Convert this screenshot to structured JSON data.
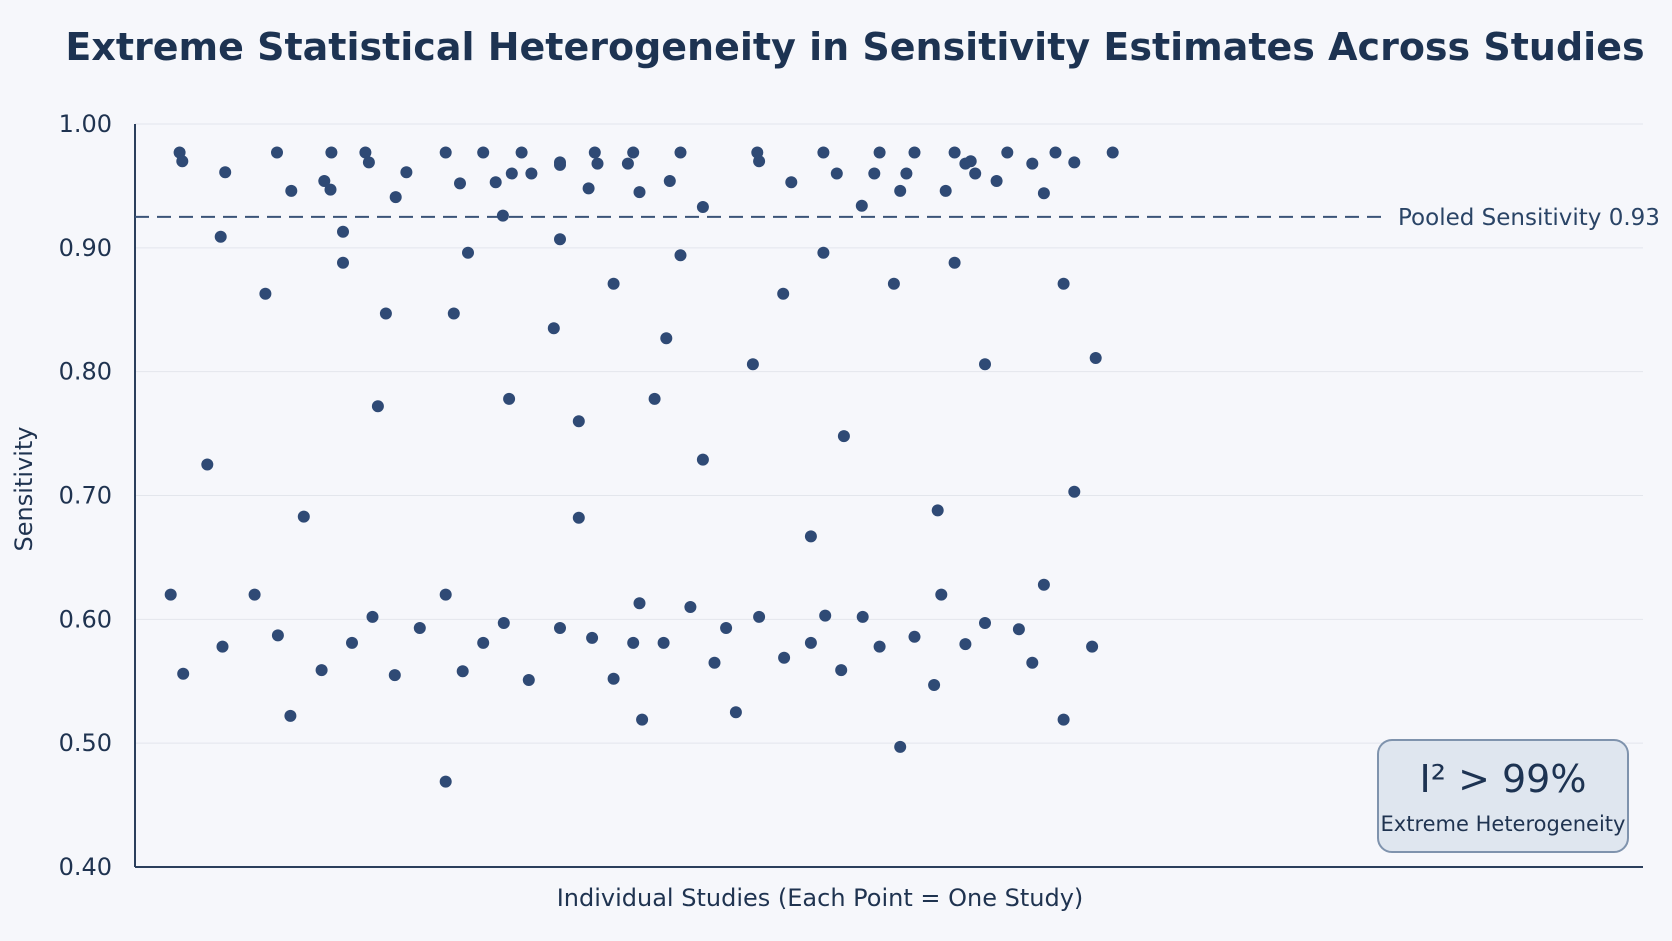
{
  "chart_data": {
    "type": "scatter",
    "title": "Extreme Statistical Heterogeneity in Sensitivity Estimates Across Studies",
    "xlabel": "Individual Studies (Each Point = One Study)",
    "ylabel": "Sensitivity",
    "ylim": [
      0.4,
      1.0
    ],
    "xlim": [
      0,
      140
    ],
    "yticks": [
      "1.00",
      "0.90",
      "0.80",
      "0.70",
      "0.60",
      "0.50",
      "0.40"
    ],
    "grid": "horizontal",
    "reference_line": {
      "value": 0.925,
      "label": "Pooled Sensitivity 0.93"
    },
    "annotation": {
      "main": "I² > 99%",
      "sub": "Extreme Heterogeneity"
    },
    "colors": {
      "point": "#2f4a75",
      "ref_line": "#3b5478",
      "box_fill": "#dfe6ef",
      "box_stroke": "#7f93ad"
    },
    "points": [
      {
        "x": 4.0,
        "y": 0.62
      },
      {
        "x": 5.0,
        "y": 0.977
      },
      {
        "x": 5.3,
        "y": 0.97
      },
      {
        "x": 5.4,
        "y": 0.556
      },
      {
        "x": 8.1,
        "y": 0.725
      },
      {
        "x": 9.6,
        "y": 0.909
      },
      {
        "x": 9.8,
        "y": 0.578
      },
      {
        "x": 10.1,
        "y": 0.961
      },
      {
        "x": 13.4,
        "y": 0.62
      },
      {
        "x": 14.6,
        "y": 0.863
      },
      {
        "x": 15.9,
        "y": 0.977
      },
      {
        "x": 16.0,
        "y": 0.587
      },
      {
        "x": 17.4,
        "y": 0.522
      },
      {
        "x": 17.5,
        "y": 0.946
      },
      {
        "x": 18.9,
        "y": 0.683
      },
      {
        "x": 20.9,
        "y": 0.559
      },
      {
        "x": 21.2,
        "y": 0.954
      },
      {
        "x": 21.9,
        "y": 0.947
      },
      {
        "x": 22.0,
        "y": 0.977
      },
      {
        "x": 23.3,
        "y": 0.913
      },
      {
        "x": 23.3,
        "y": 0.888
      },
      {
        "x": 24.3,
        "y": 0.581
      },
      {
        "x": 25.8,
        "y": 0.977
      },
      {
        "x": 26.2,
        "y": 0.969
      },
      {
        "x": 26.6,
        "y": 0.602
      },
      {
        "x": 27.2,
        "y": 0.772
      },
      {
        "x": 28.1,
        "y": 0.847
      },
      {
        "x": 29.1,
        "y": 0.555
      },
      {
        "x": 29.2,
        "y": 0.941
      },
      {
        "x": 30.4,
        "y": 0.961
      },
      {
        "x": 31.9,
        "y": 0.593
      },
      {
        "x": 34.8,
        "y": 0.977
      },
      {
        "x": 34.8,
        "y": 0.62
      },
      {
        "x": 34.8,
        "y": 0.469
      },
      {
        "x": 35.7,
        "y": 0.847
      },
      {
        "x": 36.4,
        "y": 0.952
      },
      {
        "x": 36.7,
        "y": 0.558
      },
      {
        "x": 37.3,
        "y": 0.896
      },
      {
        "x": 39.0,
        "y": 0.977
      },
      {
        "x": 39.0,
        "y": 0.581
      },
      {
        "x": 40.4,
        "y": 0.953
      },
      {
        "x": 41.2,
        "y": 0.926
      },
      {
        "x": 41.3,
        "y": 0.597
      },
      {
        "x": 41.9,
        "y": 0.778
      },
      {
        "x": 42.2,
        "y": 0.96
      },
      {
        "x": 43.3,
        "y": 0.977
      },
      {
        "x": 44.1,
        "y": 0.551
      },
      {
        "x": 44.4,
        "y": 0.96
      },
      {
        "x": 46.9,
        "y": 0.835
      },
      {
        "x": 47.6,
        "y": 0.969
      },
      {
        "x": 47.6,
        "y": 0.967
      },
      {
        "x": 47.6,
        "y": 0.907
      },
      {
        "x": 47.6,
        "y": 0.593
      },
      {
        "x": 49.7,
        "y": 0.76
      },
      {
        "x": 49.7,
        "y": 0.682
      },
      {
        "x": 50.8,
        "y": 0.948
      },
      {
        "x": 51.2,
        "y": 0.585
      },
      {
        "x": 51.5,
        "y": 0.977
      },
      {
        "x": 51.8,
        "y": 0.968
      },
      {
        "x": 53.6,
        "y": 0.871
      },
      {
        "x": 53.6,
        "y": 0.552
      },
      {
        "x": 55.2,
        "y": 0.968
      },
      {
        "x": 55.8,
        "y": 0.977
      },
      {
        "x": 55.8,
        "y": 0.581
      },
      {
        "x": 56.5,
        "y": 0.945
      },
      {
        "x": 56.5,
        "y": 0.613
      },
      {
        "x": 56.8,
        "y": 0.519
      },
      {
        "x": 58.2,
        "y": 0.778
      },
      {
        "x": 59.2,
        "y": 0.581
      },
      {
        "x": 59.5,
        "y": 0.827
      },
      {
        "x": 59.9,
        "y": 0.954
      },
      {
        "x": 61.1,
        "y": 0.977
      },
      {
        "x": 61.1,
        "y": 0.894
      },
      {
        "x": 62.2,
        "y": 0.61
      },
      {
        "x": 63.6,
        "y": 0.933
      },
      {
        "x": 63.6,
        "y": 0.729
      },
      {
        "x": 64.9,
        "y": 0.565
      },
      {
        "x": 66.2,
        "y": 0.593
      },
      {
        "x": 67.3,
        "y": 0.525
      },
      {
        "x": 69.2,
        "y": 0.806
      },
      {
        "x": 69.7,
        "y": 0.977
      },
      {
        "x": 69.9,
        "y": 0.97
      },
      {
        "x": 69.9,
        "y": 0.602
      },
      {
        "x": 72.6,
        "y": 0.863
      },
      {
        "x": 72.7,
        "y": 0.569
      },
      {
        "x": 73.5,
        "y": 0.953
      },
      {
        "x": 75.7,
        "y": 0.667
      },
      {
        "x": 75.7,
        "y": 0.581
      },
      {
        "x": 77.1,
        "y": 0.977
      },
      {
        "x": 77.1,
        "y": 0.896
      },
      {
        "x": 77.3,
        "y": 0.603
      },
      {
        "x": 78.6,
        "y": 0.96
      },
      {
        "x": 79.1,
        "y": 0.559
      },
      {
        "x": 79.4,
        "y": 0.748
      },
      {
        "x": 81.4,
        "y": 0.934
      },
      {
        "x": 81.5,
        "y": 0.602
      },
      {
        "x": 82.8,
        "y": 0.96
      },
      {
        "x": 83.4,
        "y": 0.977
      },
      {
        "x": 83.4,
        "y": 0.578
      },
      {
        "x": 85.0,
        "y": 0.871
      },
      {
        "x": 85.7,
        "y": 0.946
      },
      {
        "x": 85.7,
        "y": 0.497
      },
      {
        "x": 86.4,
        "y": 0.96
      },
      {
        "x": 87.3,
        "y": 0.977
      },
      {
        "x": 87.3,
        "y": 0.586
      },
      {
        "x": 89.5,
        "y": 0.547
      },
      {
        "x": 89.9,
        "y": 0.688
      },
      {
        "x": 90.3,
        "y": 0.62
      },
      {
        "x": 90.8,
        "y": 0.946
      },
      {
        "x": 91.8,
        "y": 0.977
      },
      {
        "x": 91.8,
        "y": 0.888
      },
      {
        "x": 93.0,
        "y": 0.968
      },
      {
        "x": 93.0,
        "y": 0.58
      },
      {
        "x": 93.6,
        "y": 0.97
      },
      {
        "x": 94.1,
        "y": 0.96
      },
      {
        "x": 95.2,
        "y": 0.806
      },
      {
        "x": 95.2,
        "y": 0.597
      },
      {
        "x": 96.5,
        "y": 0.954
      },
      {
        "x": 97.7,
        "y": 0.977
      },
      {
        "x": 99.0,
        "y": 0.592
      },
      {
        "x": 100.5,
        "y": 0.968
      },
      {
        "x": 100.5,
        "y": 0.565
      },
      {
        "x": 101.8,
        "y": 0.944
      },
      {
        "x": 101.8,
        "y": 0.628
      },
      {
        "x": 103.1,
        "y": 0.977
      },
      {
        "x": 104.0,
        "y": 0.871
      },
      {
        "x": 104.0,
        "y": 0.519
      },
      {
        "x": 105.2,
        "y": 0.969
      },
      {
        "x": 105.2,
        "y": 0.703
      },
      {
        "x": 107.2,
        "y": 0.578
      },
      {
        "x": 107.6,
        "y": 0.811
      },
      {
        "x": 109.5,
        "y": 0.977
      }
    ]
  }
}
